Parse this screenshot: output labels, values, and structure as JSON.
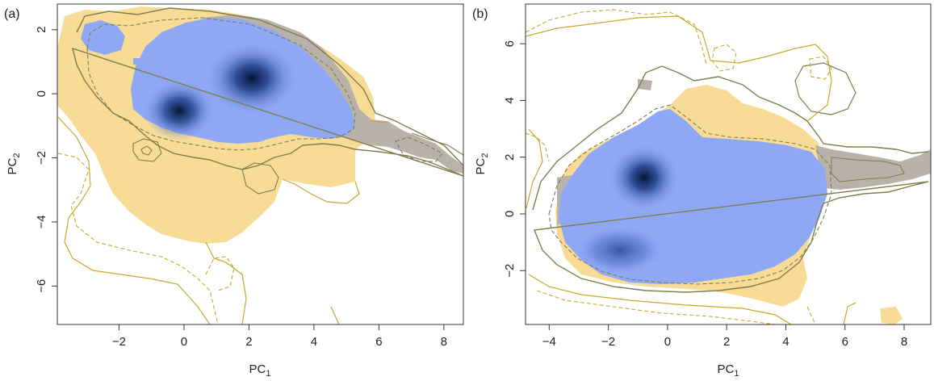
{
  "colors": {
    "yellow_fill": "#f8dc96",
    "blue_fill": "#8fa8f5",
    "gray_fill": "#b9b2aa",
    "dark_blue": "#0a1f4a",
    "contour_olive": "#7f7d4e",
    "contour_gold": "#c9a82b"
  },
  "chart_data": [
    {
      "type": "heatmap",
      "panel_label": "(a)",
      "xlabel": "PC",
      "xlabel_sub": "1",
      "ylabel": "PC",
      "ylabel_sub": "2",
      "xlim": [
        -3.9,
        8.6
      ],
      "ylim": [
        -7.2,
        2.8
      ],
      "xticks": [
        -2,
        0,
        2,
        4,
        6,
        8
      ],
      "yticks": [
        -6,
        -4,
        -2,
        0,
        2
      ],
      "xtick_labels": [
        "−2",
        "0",
        "2",
        "4",
        "6",
        "8"
      ],
      "ytick_labels": [
        "−6",
        "−4",
        "−2",
        "0",
        "2"
      ],
      "density_peaks": [
        {
          "x": 2.4,
          "y": 0.6
        },
        {
          "x": 0.0,
          "y": -0.6
        }
      ],
      "grid": false
    },
    {
      "type": "heatmap",
      "panel_label": "(b)",
      "xlabel": "PC",
      "xlabel_sub": "1",
      "ylabel": "PC",
      "ylabel_sub": "2",
      "xlim": [
        -4.8,
        8.9
      ],
      "ylim": [
        -3.9,
        7.4
      ],
      "xticks": [
        -4,
        -2,
        0,
        2,
        4,
        6,
        8
      ],
      "yticks": [
        -2,
        0,
        2,
        4,
        6
      ],
      "xtick_labels": [
        "−4",
        "−2",
        "0",
        "2",
        "4",
        "6",
        "8"
      ],
      "ytick_labels": [
        "−2",
        "0",
        "2",
        "4",
        "6"
      ],
      "density_peaks": [
        {
          "x": -0.8,
          "y": 1.3
        },
        {
          "x": -1.8,
          "y": -1.4
        }
      ],
      "grid": false
    }
  ]
}
